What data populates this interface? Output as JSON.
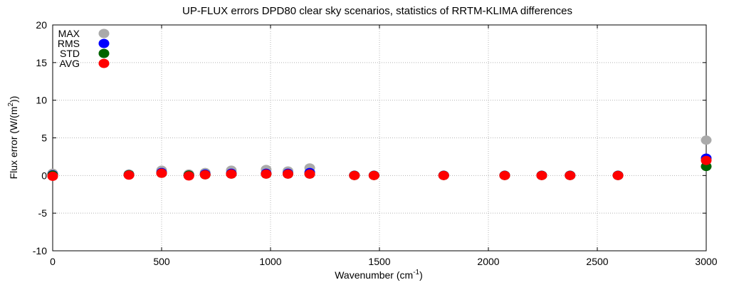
{
  "chart_data": {
    "type": "scatter",
    "title": "UP-FLUX errors DPD80 clear sky scenarios, statistics of RRTM-KLIMA differences",
    "xlabel": "Wavenumber (cm",
    "xlabel_sup": "-1",
    "xlabel_end": ")",
    "ylabel": "Flux error (W/(m",
    "ylabel_sup": "2",
    "ylabel_end": "))",
    "xlim": [
      0,
      3000
    ],
    "ylim": [
      -10,
      20
    ],
    "xticks": [
      0,
      500,
      1000,
      1500,
      2000,
      2500,
      3000
    ],
    "yticks": [
      -10,
      -5,
      0,
      5,
      10,
      15,
      20
    ],
    "grid": true,
    "legend_position": "top-left",
    "x": [
      0,
      350,
      500,
      625,
      700,
      820,
      980,
      1080,
      1180,
      1385,
      1475,
      1795,
      2075,
      2245,
      2375,
      2595,
      3000
    ],
    "series": [
      {
        "name": "MAX",
        "color": "#aaaaaa",
        "values": [
          0.3,
          0.2,
          0.7,
          0.2,
          0.4,
          0.7,
          0.8,
          0.6,
          1.0,
          0.05,
          0.05,
          0.05,
          0.05,
          0.05,
          0.05,
          0.05,
          4.7
        ]
      },
      {
        "name": "RMS",
        "color": "#0000ff",
        "values": [
          0.1,
          0.1,
          0.4,
          0.05,
          0.2,
          0.3,
          0.3,
          0.3,
          0.4,
          0.02,
          0.02,
          0.02,
          0.02,
          0.02,
          0.02,
          0.02,
          2.3
        ]
      },
      {
        "name": "STD",
        "color": "#006400",
        "values": [
          0.05,
          0.1,
          0.3,
          0.05,
          0.1,
          0.2,
          0.2,
          0.2,
          0.2,
          0.01,
          0.01,
          0.01,
          0.01,
          0.01,
          0.01,
          0.01,
          1.2
        ]
      },
      {
        "name": "AVG",
        "color": "#ff0000",
        "values": [
          -0.1,
          0.05,
          0.3,
          -0.05,
          0.1,
          0.2,
          0.2,
          0.2,
          0.2,
          0.0,
          0.0,
          0.0,
          0.0,
          0.0,
          0.0,
          0.0,
          2.0
        ]
      }
    ]
  }
}
